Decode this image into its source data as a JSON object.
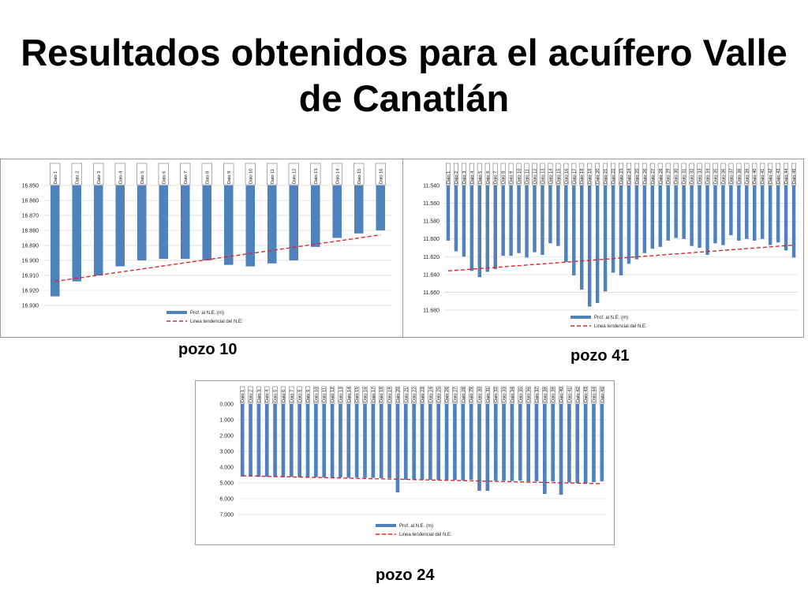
{
  "title": "Resultados obtenidos para el acuífero Valle de Canatlán",
  "legend": {
    "bar_a": "Prof. al N.E. (m)",
    "bar_b": "Prof. al N.E. (m)",
    "bar_c": "Prof. al N.E. (m)",
    "trend_a": "Linea tendencial del N.E.",
    "trend_b": "Linea tendencial del N.E.",
    "trend_c": "Linea tendencial del N.E."
  },
  "captions": {
    "pozo10": "pozo 10",
    "pozo41": "pozo 41",
    "pozo24": "pozo 24"
  },
  "colors": {
    "bar": "#4f81bd",
    "trend": "#e0262b",
    "grid": "#d9d9d9"
  },
  "chart_data": [
    {
      "type": "bar",
      "y_reversed": true,
      "ylim": [
        16.85,
        16.93
      ],
      "yticks": [
        "16.850",
        "16.860",
        "16.870",
        "16.880",
        "16.890",
        "16.900",
        "16.910",
        "16.920",
        "16.930"
      ],
      "categories": [
        "Dato 1",
        "Dato 2",
        "Dato 3",
        "Dato 4",
        "Dato 5",
        "Dato 6",
        "Dato 7",
        "Dato 8",
        "Dato 9",
        "Dato 10",
        "Dato 11",
        "Dato 12",
        "Dato 13",
        "Dato 14",
        "Dato 15",
        "Dato 16"
      ],
      "series": [
        {
          "name": "Prof. al N.E. (m)",
          "values": [
            16.924,
            16.914,
            16.91,
            16.904,
            16.9,
            16.899,
            16.899,
            16.9,
            16.903,
            16.904,
            16.902,
            16.9,
            16.891,
            16.885,
            16.882,
            16.88
          ]
        }
      ],
      "trend": [
        16.914,
        16.883
      ],
      "legend_position": "bottom"
    },
    {
      "type": "bar",
      "y_reversed": true,
      "ylim": [
        11.54,
        11.68
      ],
      "yticks": [
        "11.540",
        "11.560",
        "11.580",
        "11.600",
        "11.620",
        "11.640",
        "11.660",
        "11.680"
      ],
      "categories": [
        "Dato 1",
        "Dato 2",
        "Dato 3",
        "Dato 4",
        "Dato 5",
        "Dato 6",
        "Dato 7",
        "Dato 8",
        "Dato 9",
        "Dato 10",
        "Dato 11",
        "Dato 12",
        "Dato 13",
        "Dato 14",
        "Dato 15",
        "Dato 16",
        "Dato 17",
        "Dato 18",
        "Dato 19",
        "Dato 20",
        "Dato 21",
        "Dato 22",
        "Dato 23",
        "Dato 24",
        "Dato 25",
        "Dato 26",
        "Dato 27",
        "Dato 28",
        "Dato 29",
        "Dato 30",
        "Dato 31",
        "Dato 32",
        "Dato 33",
        "Dato 34",
        "Dato 35",
        "Dato 36",
        "Dato 37",
        "Dato 38",
        "Dato 39",
        "Dato 40",
        "Dato 41",
        "Dato 42",
        "Dato 43",
        "Dato 44",
        "Dato 45"
      ],
      "series": [
        {
          "name": "Prof. al N.E. (m)",
          "values": [
            11.602,
            11.614,
            11.62,
            11.636,
            11.643,
            11.637,
            11.634,
            11.619,
            11.619,
            11.616,
            11.621,
            11.615,
            11.618,
            11.605,
            11.608,
            11.626,
            11.641,
            11.657,
            11.676,
            11.672,
            11.659,
            11.638,
            11.641,
            11.628,
            11.623,
            11.616,
            11.611,
            11.609,
            11.602,
            11.599,
            11.6,
            11.608,
            11.61,
            11.618,
            11.605,
            11.607,
            11.596,
            11.602,
            11.6,
            11.602,
            11.6,
            11.607,
            11.604,
            11.613,
            11.621
          ]
        }
      ],
      "trend": [
        11.636,
        11.607
      ],
      "legend_position": "bottom"
    },
    {
      "type": "bar",
      "y_reversed": true,
      "ylim": [
        0,
        7
      ],
      "yticks": [
        "0.000",
        "1.000",
        "2.000",
        "3.000",
        "4.000",
        "5.000",
        "6.000",
        "7.000"
      ],
      "categories": [
        "Dato 1",
        "Dato 2",
        "Dato 3",
        "Dato 4",
        "Dato 5",
        "Dato 6",
        "Dato 7",
        "Dato 8",
        "Dato 9",
        "Dato 10",
        "Dato 11",
        "Dato 12",
        "Dato 13",
        "Dato 14",
        "Dato 15",
        "Dato 16",
        "Dato 17",
        "Dato 18",
        "Dato 19",
        "Dato 20",
        "Dato 21",
        "Dato 22",
        "Dato 23",
        "Dato 24",
        "Dato 25",
        "Dato 26",
        "Dato 27",
        "Dato 28",
        "Dato 29",
        "Dato 30",
        "Dato 31",
        "Dato 32",
        "Dato 33",
        "Dato 34",
        "Dato 35",
        "Dato 36",
        "Dato 37",
        "Dato 38",
        "Dato 39",
        "Dato 40",
        "Dato 41",
        "Dato 42",
        "Dato 43",
        "Dato 44",
        "Dato 45"
      ],
      "series": [
        {
          "name": "Prof. al N.E. (m)",
          "values": [
            4.6,
            4.6,
            4.62,
            4.62,
            4.64,
            4.64,
            4.62,
            4.65,
            4.66,
            4.64,
            4.66,
            4.67,
            4.65,
            4.68,
            4.66,
            4.68,
            4.68,
            4.7,
            4.7,
            5.6,
            4.8,
            4.78,
            4.8,
            4.8,
            4.82,
            4.8,
            4.82,
            4.84,
            4.8,
            5.5,
            5.5,
            4.86,
            4.86,
            4.88,
            4.86,
            4.9,
            4.9,
            5.7,
            4.9,
            5.75,
            4.98,
            5.0,
            5.0,
            4.95,
            4.9
          ]
        }
      ],
      "trend": [
        4.55,
        5.05
      ],
      "legend_position": "bottom"
    }
  ]
}
